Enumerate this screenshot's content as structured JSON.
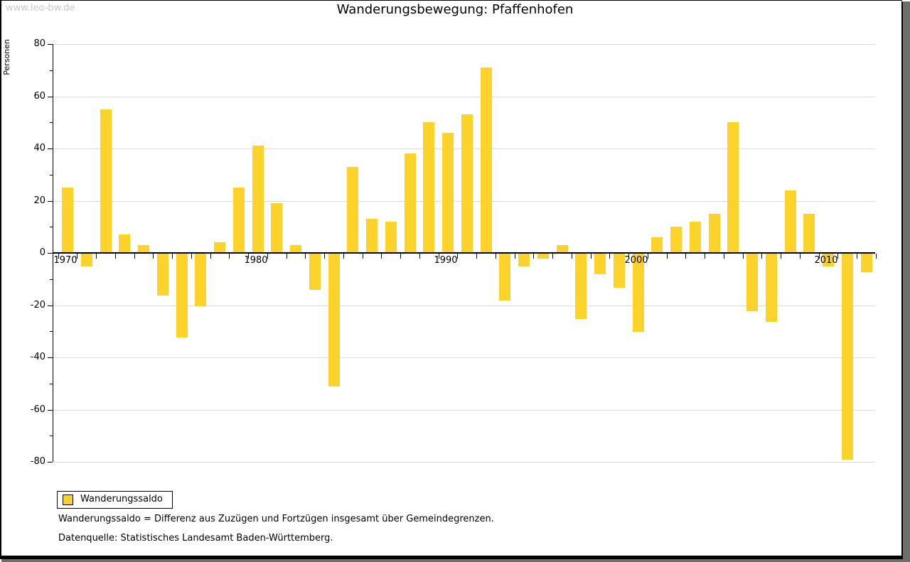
{
  "watermark": "www.leo-bw.de",
  "title": "Wanderungsbewegung: Pfaffenhofen",
  "legend": {
    "label": "Wanderungssaldo"
  },
  "footnotes": {
    "definition": "Wanderungssaldo = Differenz aus Zuzügen und Fortzügen insgesamt über Gemeindegrenzen.",
    "source": "Datenquelle: Statistisches Landesamt Baden-Württemberg."
  },
  "colors": {
    "bar": "#fcd32b",
    "grid": "#dcdcdc",
    "axis": "#000000",
    "watermark": "#c9c9c9",
    "frame_shadow": "#6e6e6e"
  },
  "chart_data": {
    "type": "bar",
    "title": "Wanderungsbewegung: Pfaffenhofen",
    "xlabel": "",
    "ylabel": "Personen",
    "ylim": [
      -80,
      80
    ],
    "grid": "horizontal-major",
    "legend_position": "bottom-left",
    "x_tick_labels": [
      1970,
      1980,
      1990,
      2000,
      2010
    ],
    "y_major_ticks": [
      80,
      60,
      40,
      20,
      0,
      -20,
      -40,
      -60,
      -80
    ],
    "x": [
      1970,
      1971,
      1972,
      1973,
      1974,
      1975,
      1976,
      1977,
      1978,
      1979,
      1980,
      1981,
      1982,
      1983,
      1984,
      1985,
      1986,
      1987,
      1988,
      1989,
      1990,
      1991,
      1992,
      1993,
      1994,
      1995,
      1996,
      1997,
      1998,
      1999,
      2000,
      2001,
      2002,
      2003,
      2004,
      2005,
      2006,
      2007,
      2008,
      2009,
      2010,
      2011,
      2012
    ],
    "series": [
      {
        "name": "Wanderungssaldo",
        "values": [
          25,
          -5,
          55,
          7,
          3,
          -16,
          -32,
          -20,
          4,
          25,
          41,
          19,
          3,
          -14,
          -51,
          33,
          13,
          12,
          38,
          50,
          46,
          53,
          71,
          -18,
          -5,
          -2,
          3,
          -25,
          -8,
          -13,
          -30,
          6,
          10,
          12,
          15,
          50,
          -22,
          -26,
          24,
          15,
          -5,
          -79,
          -7
        ]
      }
    ]
  }
}
